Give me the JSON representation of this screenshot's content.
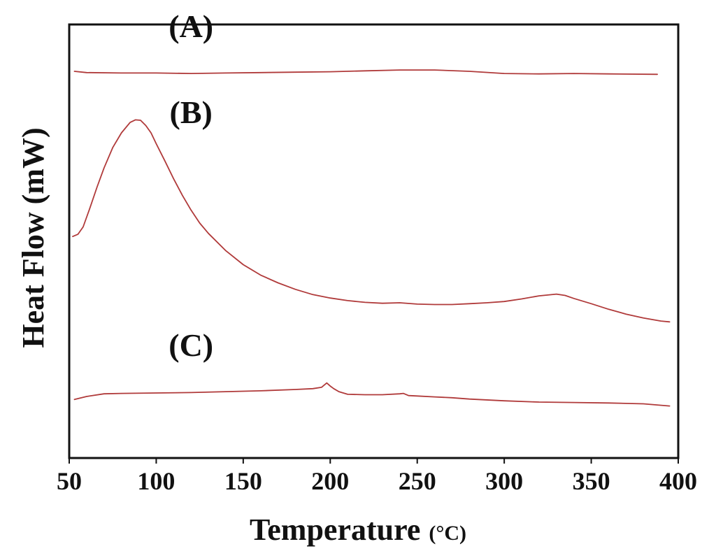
{
  "chart_data": {
    "type": "line",
    "title": "",
    "xlabel": "Temperature",
    "xlabel_unit": "(°C)",
    "ylabel": "Heat Flow (mW)",
    "xlim": [
      50,
      400
    ],
    "ylim": [
      0,
      100
    ],
    "x_ticks": [
      50,
      100,
      150,
      200,
      250,
      300,
      350,
      400
    ],
    "x_tick_labels": [
      "50",
      "100",
      "150",
      "200",
      "250",
      "300",
      "350",
      "400"
    ],
    "y_ticks_labeled": false,
    "grid": false,
    "line_color": "#b03a3a",
    "series": [
      {
        "name": "(A)",
        "x": [
          53,
          60,
          80,
          100,
          120,
          140,
          160,
          180,
          200,
          220,
          240,
          260,
          280,
          300,
          320,
          340,
          360,
          388
        ],
        "y": [
          89.2,
          88.9,
          88.8,
          88.8,
          88.7,
          88.8,
          88.9,
          89.0,
          89.1,
          89.3,
          89.5,
          89.5,
          89.2,
          88.7,
          88.6,
          88.7,
          88.6,
          88.5
        ]
      },
      {
        "name": "(B)",
        "x": [
          52,
          55,
          58,
          62,
          66,
          70,
          75,
          80,
          85,
          88,
          91,
          94,
          97,
          100,
          105,
          110,
          115,
          120,
          125,
          130,
          140,
          150,
          160,
          170,
          180,
          190,
          200,
          210,
          220,
          230,
          240,
          250,
          260,
          270,
          280,
          290,
          300,
          310,
          320,
          325,
          330,
          335,
          340,
          350,
          360,
          370,
          380,
          390,
          395
        ],
        "y": [
          51.1,
          51.6,
          53.3,
          57.8,
          62.5,
          66.9,
          71.6,
          75.0,
          77.4,
          78.0,
          77.9,
          76.7,
          75.0,
          72.5,
          68.5,
          64.4,
          60.6,
          57.2,
          54.2,
          51.8,
          47.8,
          44.6,
          42.2,
          40.4,
          38.9,
          37.7,
          36.9,
          36.3,
          35.9,
          35.7,
          35.8,
          35.5,
          35.4,
          35.4,
          35.6,
          35.8,
          36.1,
          36.7,
          37.4,
          37.6,
          37.8,
          37.5,
          36.8,
          35.6,
          34.3,
          33.2,
          32.3,
          31.6,
          31.4
        ]
      },
      {
        "name": "(C)",
        "x": [
          53,
          60,
          70,
          80,
          100,
          120,
          140,
          160,
          180,
          190,
          195,
          198,
          200,
          202,
          205,
          210,
          220,
          230,
          240,
          242,
          245,
          250,
          260,
          270,
          280,
          300,
          320,
          340,
          360,
          380,
          395
        ],
        "y": [
          13.5,
          14.2,
          14.8,
          14.9,
          15.0,
          15.1,
          15.3,
          15.5,
          15.8,
          16.0,
          16.3,
          17.3,
          16.6,
          16.0,
          15.3,
          14.7,
          14.6,
          14.6,
          14.8,
          14.9,
          14.4,
          14.3,
          14.1,
          13.9,
          13.6,
          13.2,
          12.9,
          12.8,
          12.7,
          12.5,
          12.0
        ]
      }
    ]
  }
}
